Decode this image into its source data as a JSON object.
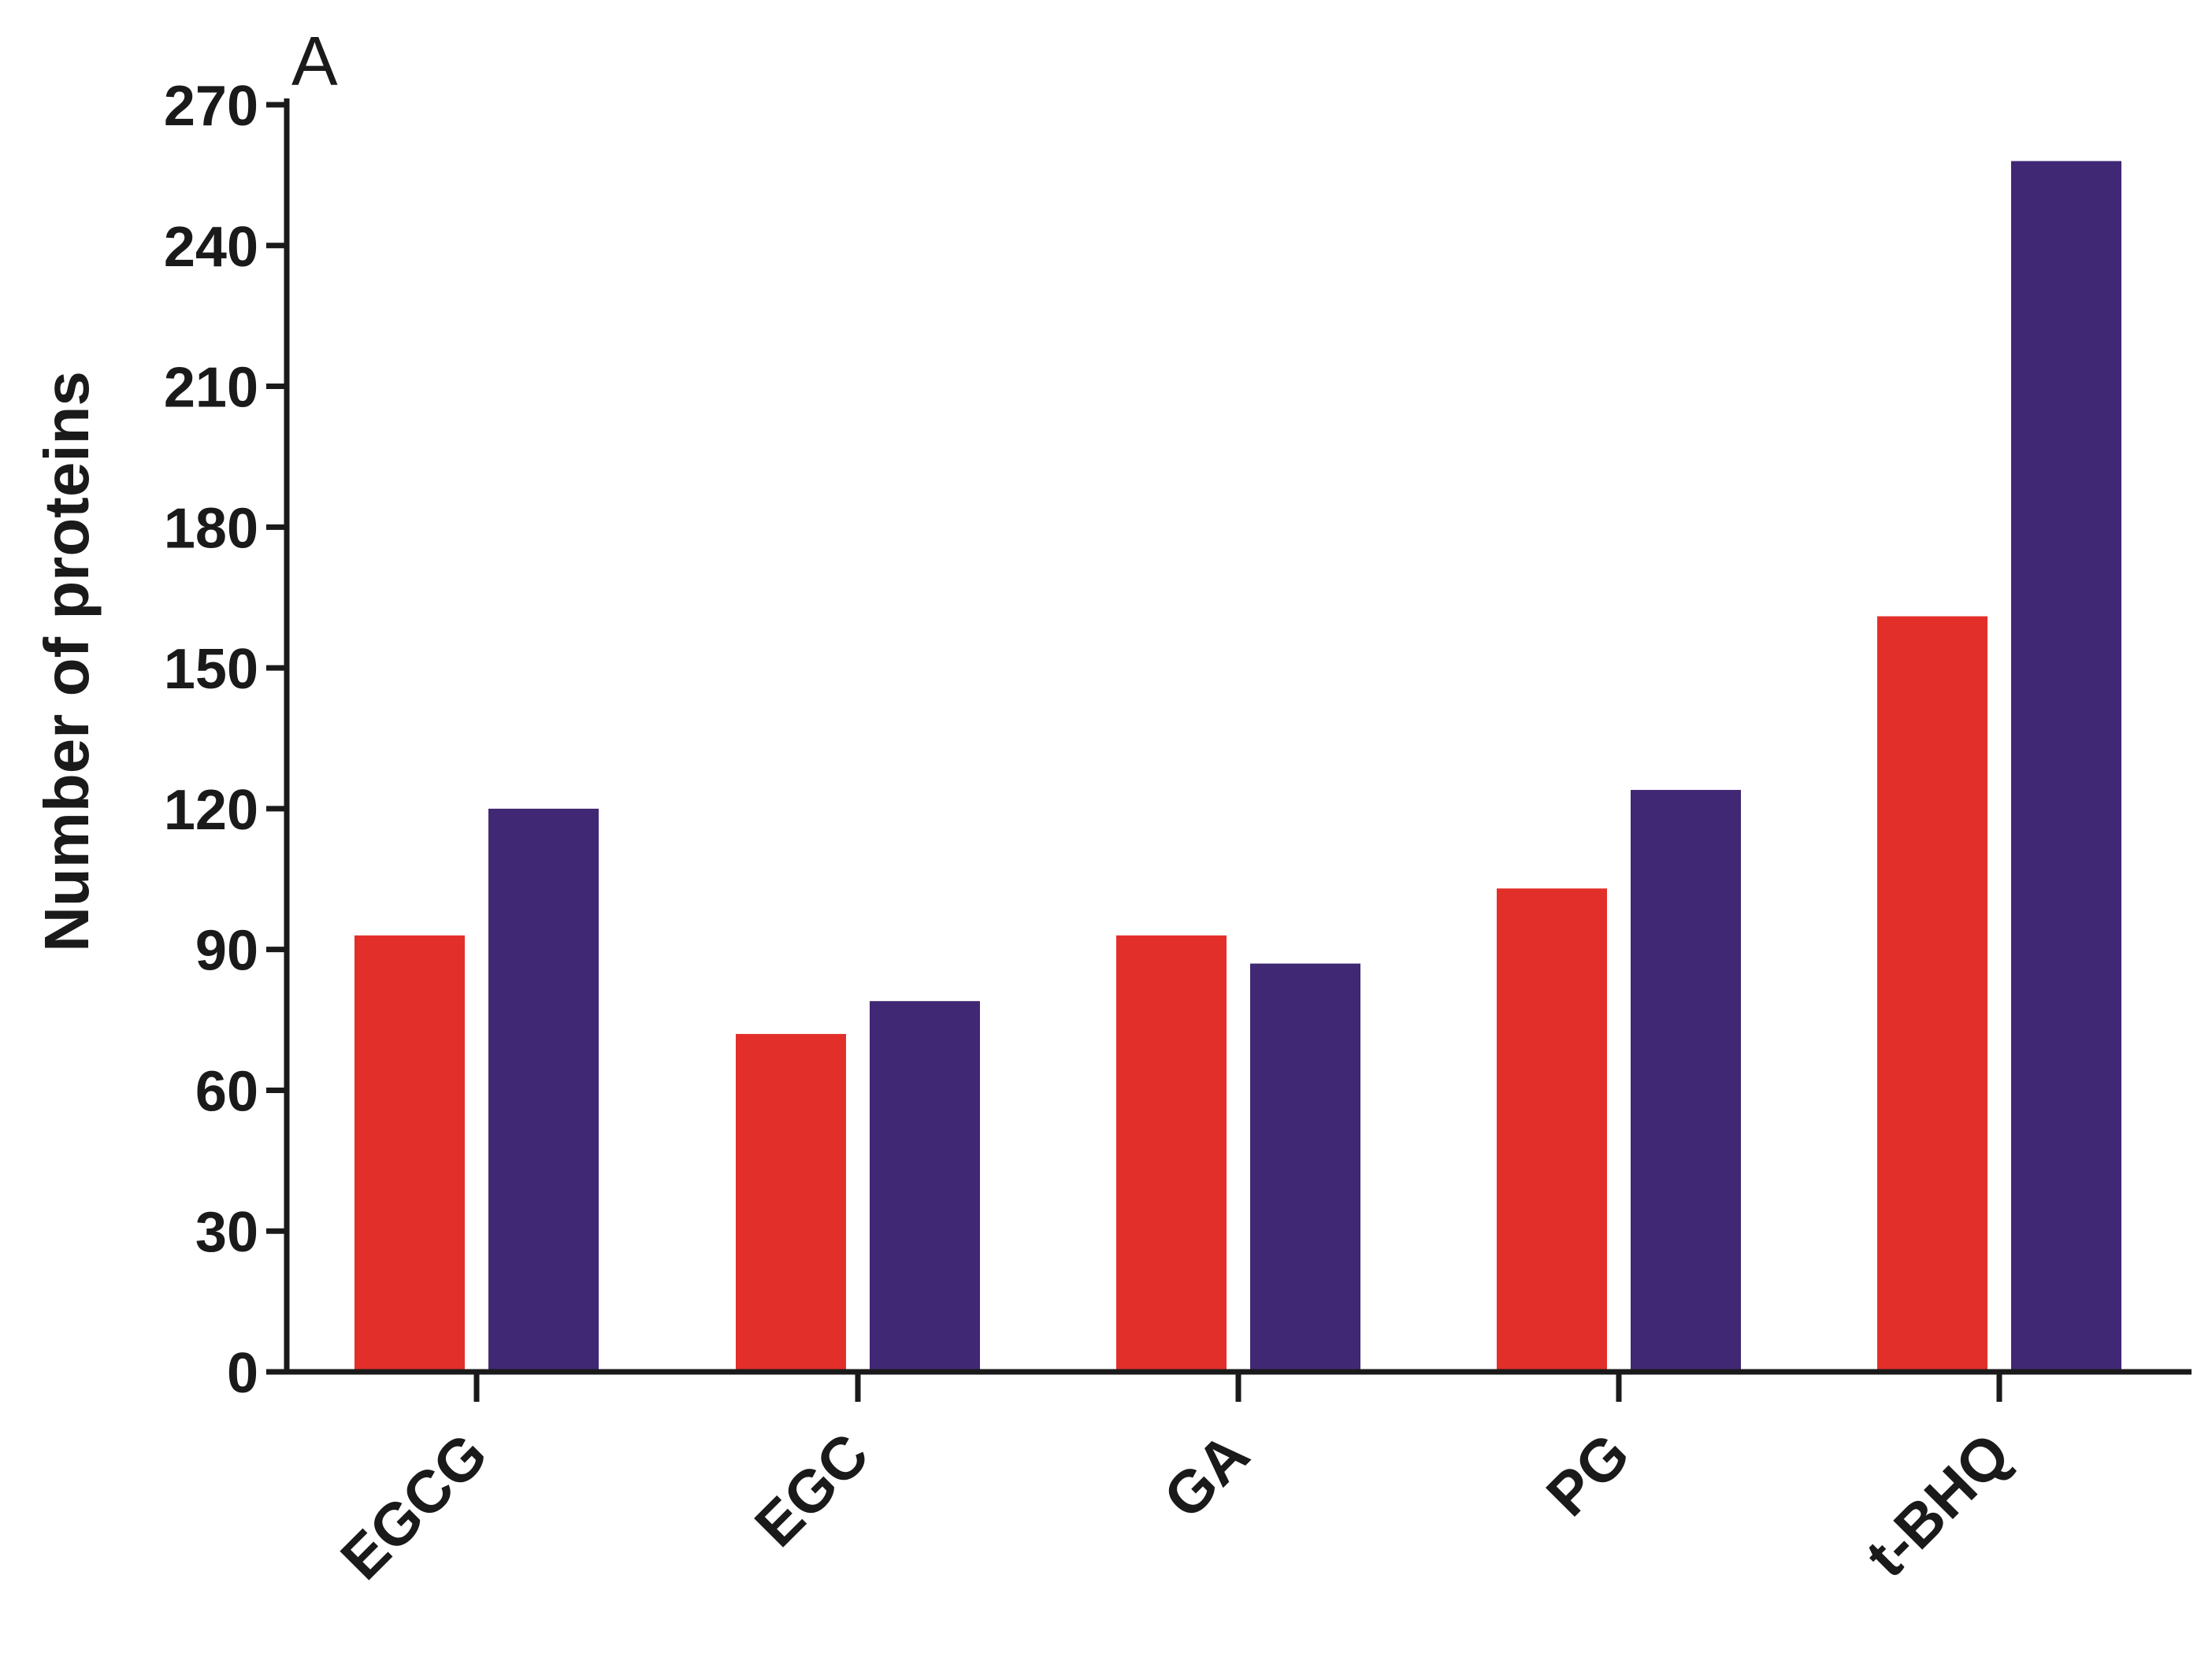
{
  "panel_label": "A",
  "colors": {
    "series_1": "#e32f2a",
    "series_2": "#412874",
    "axis": "#1a1a1a",
    "background": "#ffffff"
  },
  "chart_data": {
    "type": "bar",
    "title": "",
    "xlabel": "",
    "ylabel": "Number of proteins",
    "categories": [
      "EGCG",
      "EGC",
      "GA",
      "PG",
      "t-BHQ"
    ],
    "series": [
      {
        "values": [
          93,
          72,
          93,
          103,
          161
        ]
      },
      {
        "values": [
          120,
          79,
          87,
          124,
          258
        ]
      }
    ],
    "ylim": [
      0,
      270
    ],
    "yticks": [
      0,
      30,
      60,
      90,
      120,
      150,
      180,
      210,
      240,
      270
    ],
    "ytick_labels": [
      "0",
      "30",
      "60",
      "90",
      "120",
      "150",
      "180",
      "210",
      "240",
      "270"
    ],
    "grid": false,
    "legend": "none"
  }
}
